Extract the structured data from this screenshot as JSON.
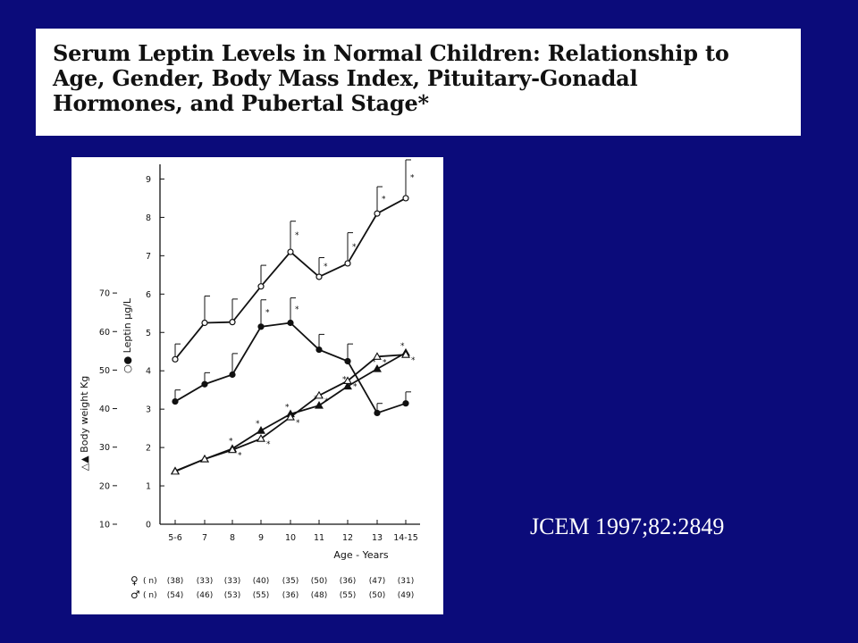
{
  "slide": {
    "background_color": "#0b0b7a",
    "title_lines": [
      "Serum Leptin Levels in Normal Children: Relationship to",
      "Age, Gender, Body Mass Index, Pituitary-Gonadal",
      "Hormones, and Pubertal Stage*"
    ],
    "citation": "JCEM 1997;82:2849"
  },
  "chart_data": {
    "type": "line",
    "xlabel": "Age - Years",
    "categories": [
      "5-6",
      "7",
      "8",
      "9",
      "10",
      "11",
      "12",
      "13",
      "14-15"
    ],
    "y_left": {
      "label": "Body weight Kg",
      "label_symbols": "△▲",
      "ticks": [
        "10",
        "20",
        "30",
        "40",
        "50",
        "60",
        "70"
      ],
      "range": [
        10,
        70
      ]
    },
    "y_right": {
      "label": "Leptin µg/L",
      "label_symbols": "○●",
      "ticks": [
        "0",
        "1",
        "2",
        "3",
        "4",
        "5",
        "6",
        "7",
        "8",
        "9"
      ],
      "range": [
        0,
        9.4
      ]
    },
    "series": [
      {
        "marker": "open-circle",
        "axis": "leptin",
        "values": [
          4.3,
          5.25,
          5.27,
          6.2,
          7.1,
          6.45,
          6.8,
          8.1,
          8.5
        ],
        "errors": [
          0.4,
          0.7,
          0.6,
          0.55,
          0.8,
          0.5,
          0.8,
          0.7,
          1.0
        ],
        "significant": [
          false,
          false,
          false,
          false,
          true,
          true,
          true,
          true,
          true
        ]
      },
      {
        "marker": "filled-circle",
        "axis": "leptin",
        "values": [
          3.2,
          3.65,
          3.9,
          5.15,
          5.25,
          4.55,
          4.25,
          2.9,
          3.15
        ],
        "errors": [
          0.3,
          0.3,
          0.55,
          0.7,
          0.65,
          0.4,
          0.45,
          0.25,
          0.3
        ],
        "significant": [
          false,
          false,
          false,
          true,
          true,
          false,
          false,
          false,
          false
        ]
      },
      {
        "marker": "filled-triangle",
        "axis": "weight",
        "values": [
          23.8,
          26.9,
          29.6,
          34.3,
          38.6,
          40.8,
          45.8,
          50.3,
          54.5
        ],
        "significant": [
          false,
          false,
          true,
          true,
          true,
          true,
          true,
          true,
          true
        ]
      },
      {
        "marker": "open-triangle",
        "axis": "weight",
        "values": [
          23.7,
          26.9,
          29.3,
          32.2,
          37.8,
          43.4,
          47.2,
          53.5,
          54.0
        ],
        "significant": [
          false,
          false,
          true,
          true,
          true,
          true,
          true,
          true,
          true
        ]
      }
    ],
    "significance_mark": "*",
    "sample_sizes": {
      "female_symbol": "♀",
      "male_symbol": "♂",
      "label": "( n)",
      "female": [
        "(38)",
        "(33)",
        "(33)",
        "(40)",
        "(35)",
        "(50)",
        "(36)",
        "(47)",
        "(31)"
      ],
      "male": [
        "(54)",
        "(46)",
        "(53)",
        "(55)",
        "(36)",
        "(48)",
        "(55)",
        "(50)",
        "(49)"
      ]
    }
  }
}
